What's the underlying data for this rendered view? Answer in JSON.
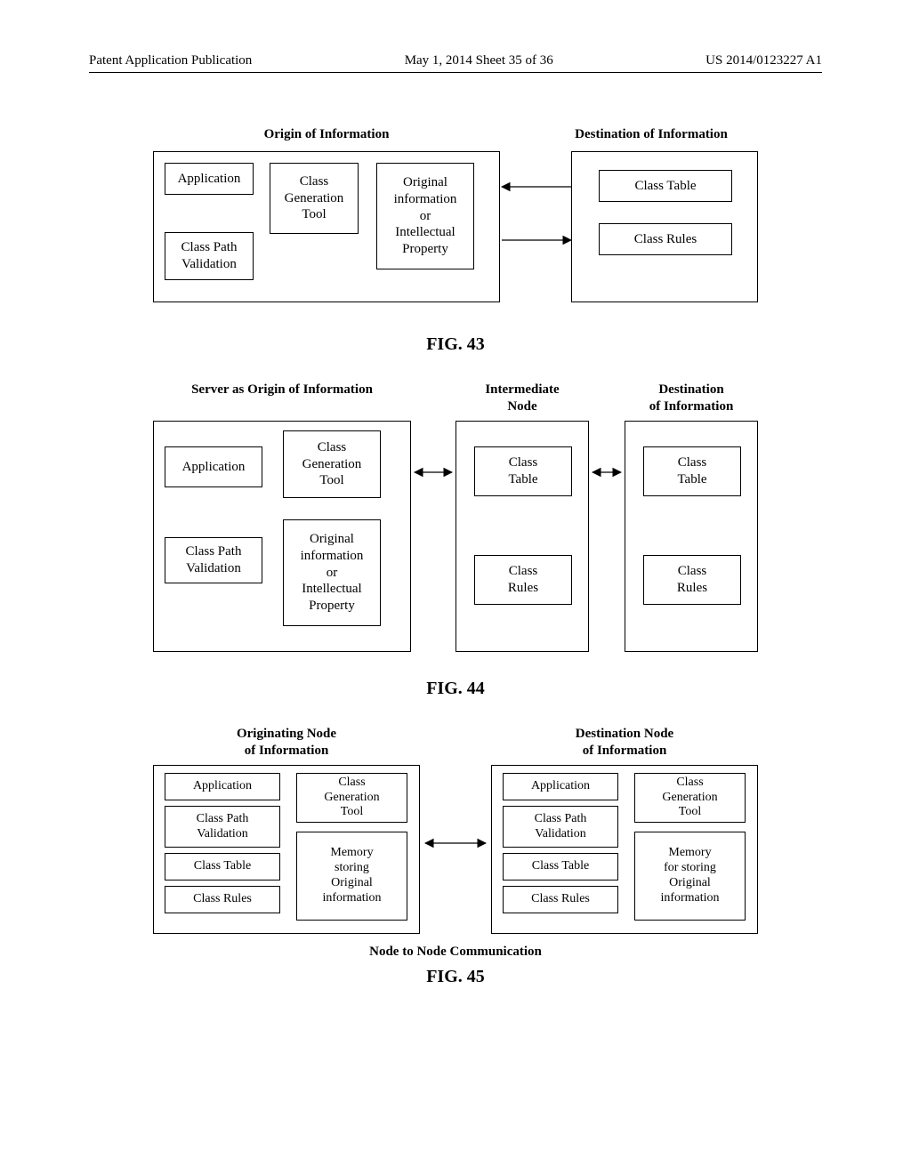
{
  "header": {
    "left": "Patent Application Publication",
    "center": "May 1, 2014   Sheet 35 of 36",
    "right": "US 2014/0123227 A1"
  },
  "fig43": {
    "title_left": "Origin of Information",
    "title_right": "Destination of Information",
    "app": "Application",
    "cpv": "Class Path\nValidation",
    "cgt": "Class\nGeneration\nTool",
    "oip": "Original\ninformation\nor\nIntellectual\nProperty",
    "ct": "Class Table",
    "cr": "Class Rules",
    "caption": "FIG. 43"
  },
  "fig44": {
    "title_left": "Server as  Origin of Information",
    "title_mid": "Intermediate\nNode",
    "title_right": "Destination\nof Information",
    "app": "Application",
    "cpv": "Class Path\nValidation",
    "cgt": "Class\nGeneration\nTool",
    "oip": "Original\ninformation\nor\nIntellectual\nProperty",
    "ct": "Class\nTable",
    "cr": "Class\nRules",
    "caption": "FIG. 44"
  },
  "fig45": {
    "title_left": "Originating Node\nof Information",
    "title_right": "Destination Node\nof Information",
    "left": {
      "app": "Application",
      "cpv": "Class Path\nValidation",
      "ct": "Class Table",
      "cr": "Class Rules",
      "cgt": "Class\nGeneration\nTool",
      "mem": "Memory\nstoring\nOriginal\ninformation"
    },
    "right": {
      "app": "Application",
      "cpv": "Class Path\nValidation",
      "ct": "Class Table",
      "cr": "Class Rules",
      "cgt": "Class\nGeneration\nTool",
      "mem": "Memory\nfor storing\nOriginal\ninformation"
    },
    "subcaption": "Node to Node Communication",
    "caption": "FIG. 45"
  },
  "style": {
    "stroke": "#000000",
    "stroke_width": 1.2,
    "arrow_size": 9
  }
}
